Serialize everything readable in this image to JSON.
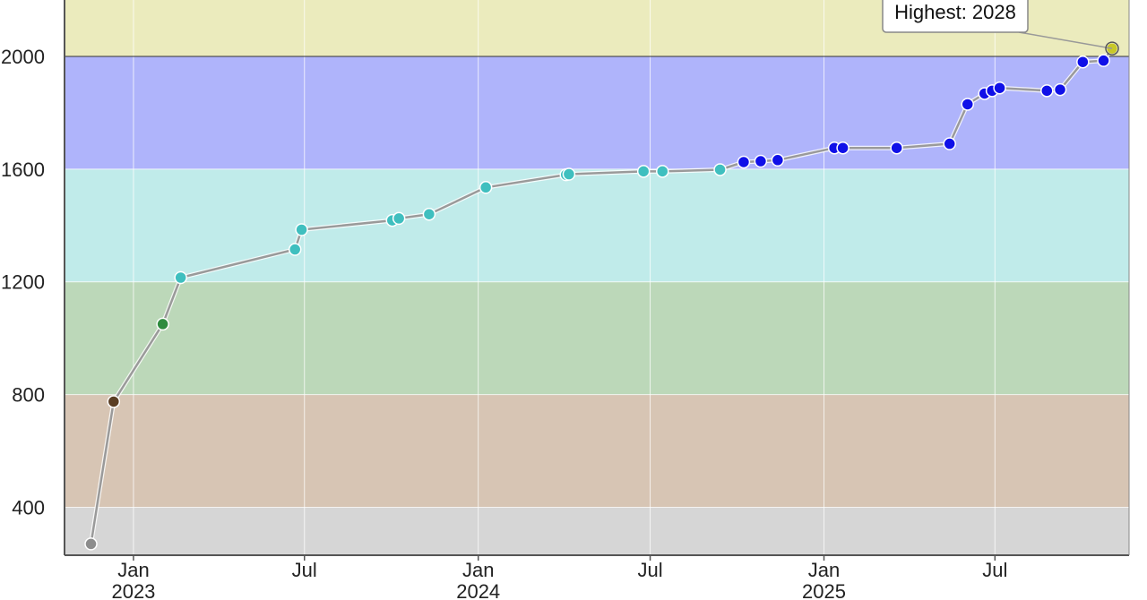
{
  "chart_data": {
    "type": "line",
    "title": "",
    "xlabel": "",
    "ylabel": "",
    "x_ticks": [
      {
        "date": "2023-01-01",
        "month": "Jan",
        "year": "2023"
      },
      {
        "date": "2023-07-01",
        "month": "Jul",
        "year": ""
      },
      {
        "date": "2024-01-01",
        "month": "Jan",
        "year": "2024"
      },
      {
        "date": "2024-07-01",
        "month": "Jul",
        "year": ""
      },
      {
        "date": "2025-01-01",
        "month": "Jan",
        "year": "2025"
      },
      {
        "date": "2025-07-01",
        "month": "Jul",
        "year": ""
      }
    ],
    "y_ticks": [
      400,
      800,
      1200,
      1600,
      2000
    ],
    "xlim": [
      "2022-10-20",
      "2025-11-20"
    ],
    "ylim": [
      230,
      2200
    ],
    "grid": true,
    "bands": [
      {
        "from": 0,
        "to": 400,
        "color": "#d6d6d6"
      },
      {
        "from": 400,
        "to": 800,
        "color": "#d7c5b4"
      },
      {
        "from": 800,
        "to": 1200,
        "color": "#bcd8b9"
      },
      {
        "from": 1200,
        "to": 1600,
        "color": "#c0ebea"
      },
      {
        "from": 1600,
        "to": 2000,
        "color": "#afb4fb"
      },
      {
        "from": 2000,
        "to": 2400,
        "color": "#ebebbd"
      }
    ],
    "band_boundary_line": 2000,
    "line_color": "#9a9a9a",
    "point_colors": {
      "gray": "#8c8c8c",
      "brown": "#5a3e24",
      "green": "#2e8b3e",
      "cyan": "#3fbfbf",
      "blue": "#1010e8",
      "yellow": "#c8c828"
    },
    "points": [
      {
        "x": "2022-11-17",
        "y": 270,
        "color": "gray"
      },
      {
        "x": "2022-12-11",
        "y": 775,
        "color": "brown"
      },
      {
        "x": "2023-02-01",
        "y": 1050,
        "color": "green"
      },
      {
        "x": "2023-02-20",
        "y": 1215,
        "color": "cyan"
      },
      {
        "x": "2023-06-21",
        "y": 1315,
        "color": "cyan"
      },
      {
        "x": "2023-06-28",
        "y": 1385,
        "color": "cyan"
      },
      {
        "x": "2023-10-02",
        "y": 1418,
        "color": "cyan"
      },
      {
        "x": "2023-10-09",
        "y": 1425,
        "color": "cyan"
      },
      {
        "x": "2023-11-10",
        "y": 1440,
        "color": "cyan"
      },
      {
        "x": "2024-01-09",
        "y": 1535,
        "color": "cyan"
      },
      {
        "x": "2024-04-03",
        "y": 1580,
        "color": "cyan"
      },
      {
        "x": "2024-04-06",
        "y": 1582,
        "color": "cyan"
      },
      {
        "x": "2024-06-24",
        "y": 1592,
        "color": "cyan"
      },
      {
        "x": "2024-07-14",
        "y": 1592,
        "color": "cyan"
      },
      {
        "x": "2024-09-13",
        "y": 1598,
        "color": "cyan"
      },
      {
        "x": "2024-10-08",
        "y": 1625,
        "color": "blue"
      },
      {
        "x": "2024-10-26",
        "y": 1628,
        "color": "blue"
      },
      {
        "x": "2024-11-13",
        "y": 1632,
        "color": "blue"
      },
      {
        "x": "2025-01-12",
        "y": 1675,
        "color": "blue"
      },
      {
        "x": "2025-01-21",
        "y": 1675,
        "color": "blue"
      },
      {
        "x": "2025-03-19",
        "y": 1675,
        "color": "blue"
      },
      {
        "x": "2025-05-14",
        "y": 1690,
        "color": "blue"
      },
      {
        "x": "2025-06-02",
        "y": 1830,
        "color": "blue"
      },
      {
        "x": "2025-06-20",
        "y": 1868,
        "color": "blue"
      },
      {
        "x": "2025-06-28",
        "y": 1878,
        "color": "blue"
      },
      {
        "x": "2025-07-06",
        "y": 1888,
        "color": "blue"
      },
      {
        "x": "2025-08-25",
        "y": 1878,
        "color": "blue"
      },
      {
        "x": "2025-09-08",
        "y": 1882,
        "color": "blue"
      },
      {
        "x": "2025-10-02",
        "y": 1980,
        "color": "blue"
      },
      {
        "x": "2025-10-24",
        "y": 1985,
        "color": "blue"
      },
      {
        "x": "2025-11-02",
        "y": 2028,
        "color": "yellow"
      }
    ],
    "annotation": {
      "text": "Highest: 2028",
      "point_index": 30
    }
  }
}
